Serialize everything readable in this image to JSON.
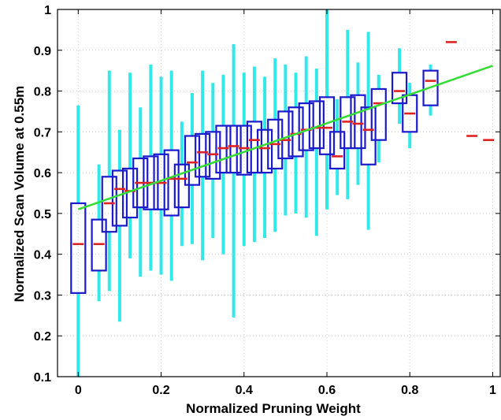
{
  "chart_data": {
    "type": "box",
    "title": "",
    "xlabel": "Normalized Pruning Weight",
    "ylabel": "Normalized Scan Volume at 0.55m",
    "xlim": [
      -0.05,
      1.02
    ],
    "ylim": [
      0.1,
      1.0
    ],
    "xticks": [
      0,
      0.2,
      0.4,
      0.6,
      0.8,
      1
    ],
    "xtick_labels": [
      "0",
      "0.2",
      "0.4",
      "0.6",
      "0.8",
      "1"
    ],
    "yticks": [
      0.1,
      0.2,
      0.3,
      0.4,
      0.5,
      0.6,
      0.7,
      0.8,
      0.9,
      1.0
    ],
    "ytick_labels": [
      "0.1",
      "0.2",
      "0.3",
      "0.4",
      "0.5",
      "0.6",
      "0.7",
      "0.8",
      "0.9",
      "1"
    ],
    "grid": true,
    "colors": {
      "whisker": "#33e8e8",
      "box": "#1a1acc",
      "median": "#dd2222",
      "fit_line": "#33dd33"
    },
    "boxes": [
      {
        "x": 0.0,
        "min": 0.1,
        "q1": 0.305,
        "median": 0.425,
        "q3": 0.525,
        "max": 0.765
      },
      {
        "x": 0.05,
        "min": 0.285,
        "q1": 0.36,
        "median": 0.425,
        "q3": 0.485,
        "max": 0.62
      },
      {
        "x": 0.075,
        "min": 0.31,
        "q1": 0.455,
        "median": 0.525,
        "q3": 0.59,
        "max": 0.85
      },
      {
        "x": 0.1,
        "min": 0.235,
        "q1": 0.47,
        "median": 0.56,
        "q3": 0.605,
        "max": 0.705
      },
      {
        "x": 0.125,
        "min": 0.39,
        "q1": 0.49,
        "median": 0.555,
        "q3": 0.61,
        "max": 0.845
      },
      {
        "x": 0.15,
        "min": 0.345,
        "q1": 0.515,
        "median": 0.575,
        "q3": 0.635,
        "max": 0.76
      },
      {
        "x": 0.175,
        "min": 0.36,
        "q1": 0.51,
        "median": 0.575,
        "q3": 0.64,
        "max": 0.865
      },
      {
        "x": 0.2,
        "min": 0.35,
        "q1": 0.51,
        "median": 0.575,
        "q3": 0.645,
        "max": 0.835
      },
      {
        "x": 0.225,
        "min": 0.335,
        "q1": 0.495,
        "median": 0.585,
        "q3": 0.655,
        "max": 0.85
      },
      {
        "x": 0.25,
        "min": 0.42,
        "q1": 0.515,
        "median": 0.585,
        "q3": 0.62,
        "max": 0.725
      },
      {
        "x": 0.275,
        "min": 0.425,
        "q1": 0.57,
        "median": 0.625,
        "q3": 0.69,
        "max": 0.795
      },
      {
        "x": 0.3,
        "min": 0.385,
        "q1": 0.59,
        "median": 0.65,
        "q3": 0.695,
        "max": 0.85
      },
      {
        "x": 0.325,
        "min": 0.44,
        "q1": 0.585,
        "median": 0.645,
        "q3": 0.7,
        "max": 0.82
      },
      {
        "x": 0.35,
        "min": 0.4,
        "q1": 0.6,
        "median": 0.66,
        "q3": 0.715,
        "max": 0.84
      },
      {
        "x": 0.375,
        "min": 0.245,
        "q1": 0.6,
        "median": 0.665,
        "q3": 0.715,
        "max": 0.915
      },
      {
        "x": 0.4,
        "min": 0.42,
        "q1": 0.595,
        "median": 0.66,
        "q3": 0.715,
        "max": 0.845
      },
      {
        "x": 0.425,
        "min": 0.43,
        "q1": 0.6,
        "median": 0.68,
        "q3": 0.725,
        "max": 0.86
      },
      {
        "x": 0.45,
        "min": 0.44,
        "q1": 0.6,
        "median": 0.66,
        "q3": 0.705,
        "max": 0.835
      },
      {
        "x": 0.475,
        "min": 0.455,
        "q1": 0.61,
        "median": 0.67,
        "q3": 0.73,
        "max": 0.88
      },
      {
        "x": 0.5,
        "min": 0.495,
        "q1": 0.635,
        "median": 0.68,
        "q3": 0.75,
        "max": 0.865
      },
      {
        "x": 0.525,
        "min": 0.5,
        "q1": 0.64,
        "median": 0.695,
        "q3": 0.76,
        "max": 0.845
      },
      {
        "x": 0.55,
        "min": 0.49,
        "q1": 0.655,
        "median": 0.705,
        "q3": 0.77,
        "max": 0.885
      },
      {
        "x": 0.575,
        "min": 0.445,
        "q1": 0.66,
        "median": 0.71,
        "q3": 0.775,
        "max": 0.855
      },
      {
        "x": 0.6,
        "min": 0.51,
        "q1": 0.645,
        "median": 0.71,
        "q3": 0.785,
        "max": 1.0
      },
      {
        "x": 0.625,
        "min": 0.545,
        "q1": 0.61,
        "median": 0.64,
        "q3": 0.7,
        "max": 0.78
      },
      {
        "x": 0.65,
        "min": 0.535,
        "q1": 0.66,
        "median": 0.725,
        "q3": 0.785,
        "max": 0.95
      },
      {
        "x": 0.675,
        "min": 0.57,
        "q1": 0.66,
        "median": 0.72,
        "q3": 0.79,
        "max": 0.87
      },
      {
        "x": 0.7,
        "min": 0.46,
        "q1": 0.62,
        "median": 0.705,
        "q3": 0.76,
        "max": 0.945
      },
      {
        "x": 0.725,
        "min": 0.625,
        "q1": 0.68,
        "median": 0.77,
        "q3": 0.805,
        "max": 0.84
      },
      {
        "x": 0.775,
        "min": 0.72,
        "q1": 0.77,
        "median": 0.8,
        "q3": 0.845,
        "max": 0.905
      },
      {
        "x": 0.8,
        "min": 0.66,
        "q1": 0.7,
        "median": 0.745,
        "q3": 0.79,
        "max": 0.82
      },
      {
        "x": 0.85,
        "min": 0.74,
        "q1": 0.765,
        "median": 0.825,
        "q3": 0.85,
        "max": 0.865
      }
    ],
    "medians_only": [
      {
        "x": 0.9,
        "median": 0.92
      },
      {
        "x": 0.95,
        "median": 0.69
      },
      {
        "x": 0.99,
        "median": 0.68
      }
    ],
    "fit_line": {
      "x": [
        0.0,
        1.0
      ],
      "y": [
        0.51,
        0.862
      ]
    }
  }
}
